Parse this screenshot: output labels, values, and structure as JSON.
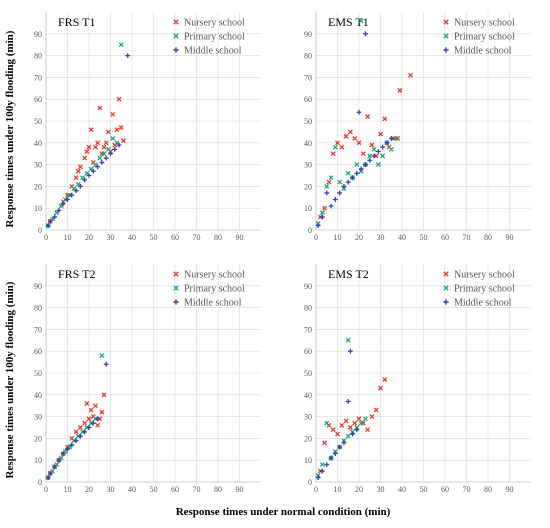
{
  "figure": {
    "ylabel": "Response times under 100y flooding (min)",
    "xlabel": "Response times under normal condition (min)"
  },
  "colors": {
    "nursery": "#e8382f",
    "primary": "#1aa971",
    "middle": "#3d3db5"
  },
  "chart_data": [
    {
      "type": "scatter",
      "title": "FRS  T1",
      "xlim": [
        0,
        100
      ],
      "ylim": [
        0,
        100
      ],
      "xticks": [
        0,
        10,
        20,
        30,
        40,
        50,
        60,
        70,
        80,
        90
      ],
      "yticks": [
        0,
        10,
        20,
        30,
        40,
        50,
        60,
        70,
        80,
        90
      ],
      "grid": true,
      "legend_position": "top-right",
      "series": [
        {
          "name": "Nursery school",
          "color": "#e8382f",
          "marker": "x",
          "x": [
            2,
            5,
            8,
            10,
            12,
            14,
            15,
            16,
            18,
            19,
            20,
            21,
            22,
            23,
            24,
            25,
            26,
            27,
            28,
            29,
            30,
            31,
            32,
            33,
            34,
            35,
            36
          ],
          "y": [
            4,
            8,
            13,
            16,
            20,
            24,
            27,
            29,
            33,
            36,
            38,
            46,
            31,
            38,
            40,
            56,
            35,
            38,
            40,
            45,
            36,
            53,
            39,
            46,
            60,
            47,
            41
          ]
        },
        {
          "name": "Primary school",
          "color": "#1aa971",
          "marker": "x",
          "x": [
            1,
            3,
            5,
            7,
            9,
            11,
            13,
            15,
            17,
            19,
            21,
            23,
            25,
            27,
            29,
            31,
            33,
            35
          ],
          "y": [
            2,
            5,
            8,
            11,
            14,
            16,
            19,
            21,
            24,
            26,
            28,
            30,
            33,
            35,
            37,
            42,
            40,
            85
          ]
        },
        {
          "name": "Middle school",
          "color": "#3d3db5",
          "marker": "+",
          "x": [
            1,
            2,
            4,
            6,
            8,
            10,
            12,
            14,
            16,
            18,
            20,
            22,
            24,
            26,
            28,
            30,
            32,
            34,
            38
          ],
          "y": [
            2,
            4,
            6,
            9,
            12,
            14,
            16,
            18,
            20,
            23,
            25,
            27,
            29,
            31,
            33,
            35,
            37,
            39,
            80
          ]
        }
      ]
    },
    {
      "type": "scatter",
      "title": "EMS  T1",
      "xlim": [
        0,
        100
      ],
      "ylim": [
        0,
        100
      ],
      "xticks": [
        0,
        10,
        20,
        30,
        40,
        50,
        60,
        70,
        80,
        90
      ],
      "yticks": [
        0,
        10,
        20,
        30,
        40,
        50,
        60,
        70,
        80,
        90
      ],
      "grid": true,
      "legend_position": "top-right",
      "series": [
        {
          "name": "Nursery school",
          "color": "#e8382f",
          "marker": "x",
          "x": [
            2,
            4,
            6,
            8,
            10,
            12,
            14,
            16,
            18,
            20,
            22,
            24,
            26,
            28,
            30,
            32,
            34,
            36,
            38,
            39,
            44
          ],
          "y": [
            6,
            10,
            22,
            35,
            40,
            38,
            43,
            45,
            42,
            40,
            35,
            52,
            39,
            34,
            44,
            51,
            38,
            42,
            42,
            64,
            71
          ]
        },
        {
          "name": "Primary school",
          "color": "#1aa971",
          "marker": "x",
          "x": [
            1,
            3,
            5,
            7,
            9,
            11,
            13,
            15,
            17,
            19,
            21,
            23,
            25,
            27,
            29,
            31,
            33,
            35,
            37,
            21
          ],
          "y": [
            3,
            8,
            20,
            24,
            38,
            22,
            19,
            26,
            24,
            30,
            27,
            30,
            34,
            37,
            30,
            34,
            40,
            37,
            42,
            96
          ]
        },
        {
          "name": "Middle school",
          "color": "#3d3db5",
          "marker": "+",
          "x": [
            1,
            3,
            5,
            7,
            9,
            11,
            13,
            15,
            17,
            19,
            20,
            21,
            23,
            25,
            27,
            29,
            31,
            33,
            35,
            23
          ],
          "y": [
            2,
            6,
            17,
            11,
            14,
            17,
            20,
            22,
            24,
            26,
            54,
            28,
            30,
            32,
            34,
            36,
            38,
            40,
            42,
            90
          ]
        }
      ]
    },
    {
      "type": "scatter",
      "title": "FRS  T2",
      "xlim": [
        0,
        100
      ],
      "ylim": [
        0,
        100
      ],
      "xticks": [
        0,
        10,
        20,
        30,
        40,
        50,
        60,
        70,
        80,
        90
      ],
      "yticks": [
        0,
        10,
        20,
        30,
        40,
        50,
        60,
        70,
        80,
        90
      ],
      "grid": true,
      "legend_position": "top-right",
      "series": [
        {
          "name": "Nursery school",
          "color": "#e8382f",
          "marker": "x",
          "x": [
            2,
            4,
            6,
            8,
            10,
            12,
            14,
            16,
            18,
            19,
            20,
            21,
            22,
            23,
            24,
            25,
            26,
            27
          ],
          "y": [
            4,
            7,
            10,
            13,
            16,
            20,
            23,
            25,
            27,
            36,
            29,
            33,
            30,
            35,
            26,
            29,
            32,
            40
          ]
        },
        {
          "name": "Primary school",
          "color": "#1aa971",
          "marker": "x",
          "x": [
            1,
            3,
            5,
            7,
            9,
            11,
            13,
            15,
            17,
            19,
            21,
            23,
            26
          ],
          "y": [
            2,
            5,
            8,
            11,
            14,
            16,
            19,
            21,
            23,
            25,
            27,
            29,
            58
          ]
        },
        {
          "name": "Middle school",
          "color": "#3d3db5",
          "marker": "+",
          "x": [
            1,
            2,
            4,
            6,
            8,
            10,
            12,
            14,
            16,
            18,
            20,
            22,
            24,
            28
          ],
          "y": [
            2,
            4,
            7,
            10,
            13,
            15,
            17,
            19,
            21,
            23,
            25,
            27,
            29,
            54
          ]
        }
      ]
    },
    {
      "type": "scatter",
      "title": "EMS  T2",
      "xlim": [
        0,
        100
      ],
      "ylim": [
        0,
        100
      ],
      "xticks": [
        0,
        10,
        20,
        30,
        40,
        50,
        60,
        70,
        80,
        90
      ],
      "yticks": [
        0,
        10,
        20,
        30,
        40,
        50,
        60,
        70,
        80,
        90
      ],
      "grid": true,
      "legend_position": "top-right",
      "series": [
        {
          "name": "Nursery school",
          "color": "#e8382f",
          "marker": "x",
          "x": [
            2,
            4,
            6,
            8,
            10,
            12,
            14,
            16,
            18,
            20,
            22,
            24,
            26,
            28,
            30,
            32
          ],
          "y": [
            5,
            18,
            26,
            24,
            22,
            26,
            28,
            25,
            27,
            29,
            27,
            24,
            30,
            33,
            43,
            47
          ]
        },
        {
          "name": "Primary school",
          "color": "#1aa971",
          "marker": "x",
          "x": [
            1,
            3,
            5,
            7,
            9,
            11,
            13,
            15,
            17,
            19,
            21,
            23,
            15
          ],
          "y": [
            3,
            8,
            27,
            11,
            14,
            16,
            19,
            21,
            23,
            25,
            27,
            29,
            65
          ]
        },
        {
          "name": "Middle school",
          "color": "#3d3db5",
          "marker": "+",
          "x": [
            1,
            3,
            5,
            7,
            9,
            11,
            13,
            15,
            16,
            17,
            19
          ],
          "y": [
            2,
            5,
            8,
            11,
            13,
            16,
            18,
            37,
            60,
            22,
            24
          ]
        }
      ]
    }
  ]
}
